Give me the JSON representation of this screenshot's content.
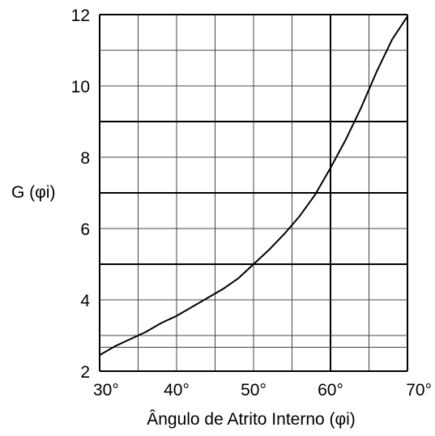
{
  "chart_data": {
    "type": "line",
    "title": "",
    "xlabel": "Ângulo de Atrito Interno (φi)",
    "ylabel": "G (φi)",
    "xlim": [
      30,
      70
    ],
    "ylim": [
      2,
      12
    ],
    "x_ticks": [
      30,
      40,
      50,
      60,
      70
    ],
    "x_tick_labels": [
      "30°",
      "40°",
      "50°",
      "60°",
      "70°"
    ],
    "y_ticks": [
      2,
      4,
      6,
      8,
      10,
      12
    ],
    "y_tick_labels": [
      "2",
      "4",
      "6",
      "8",
      "10",
      "12"
    ],
    "grid": true,
    "x_grid": [
      30,
      35,
      40,
      45,
      50,
      55,
      60,
      65,
      70
    ],
    "y_grid": [
      2,
      2.67,
      3,
      4,
      5,
      6,
      7,
      8,
      9,
      10,
      11,
      12
    ],
    "legend": "none",
    "series": [
      {
        "x": [
          30,
          32,
          34,
          36,
          38,
          40,
          42,
          44,
          46,
          48,
          50,
          52,
          54,
          56,
          58,
          60,
          62,
          64,
          66,
          68,
          70
        ],
        "y": [
          2.45,
          2.7,
          2.9,
          3.1,
          3.35,
          3.55,
          3.8,
          4.05,
          4.3,
          4.6,
          5.0,
          5.4,
          5.85,
          6.35,
          6.95,
          7.7,
          8.5,
          9.4,
          10.4,
          11.3,
          11.95
        ],
        "color": "#000000"
      }
    ]
  }
}
